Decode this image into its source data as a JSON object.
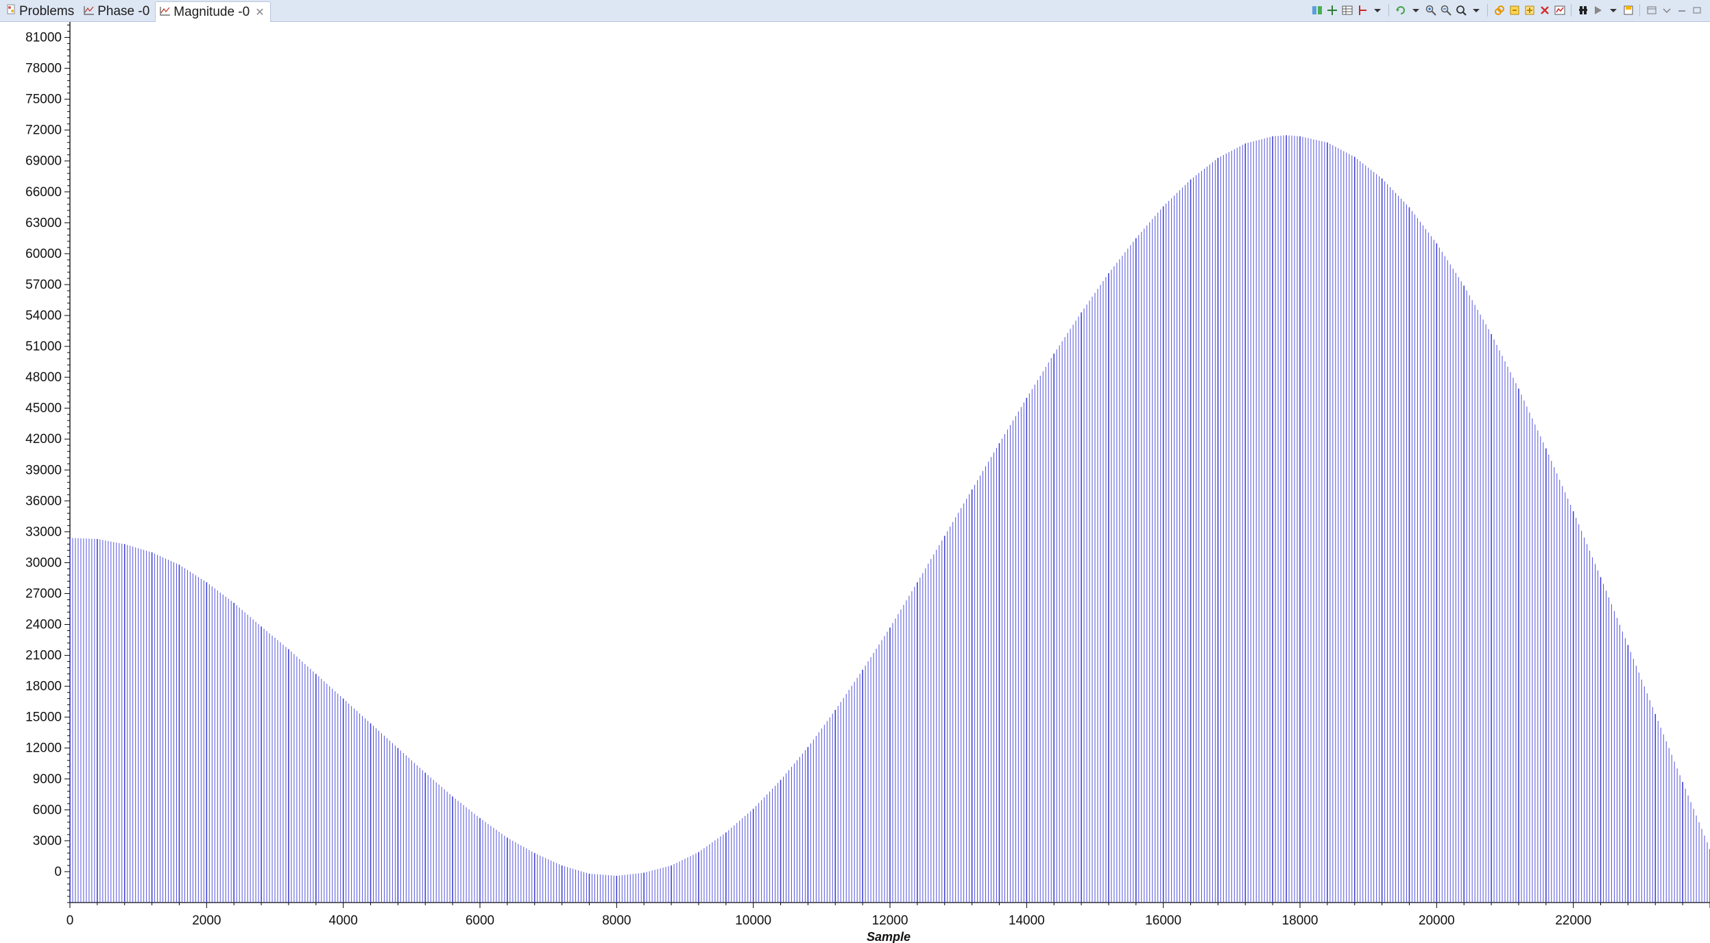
{
  "tabs": [
    {
      "label": "Problems",
      "icon": "problems-icon",
      "active": false
    },
    {
      "label": "Phase -0",
      "icon": "graph-icon",
      "active": false
    },
    {
      "label": "Magnitude -0",
      "icon": "graph-icon",
      "active": true,
      "close_icon": "close-icon"
    }
  ],
  "toolbar": {
    "icons": [
      "columns-icon",
      "grid-icon",
      "table-icon",
      "cursor-icon",
      "dropdown-icon",
      "refresh-icon",
      "dropdown-icon",
      "zoom-in-icon",
      "zoom-out-icon",
      "zoom-reset-icon",
      "dropdown-icon",
      "link-icon",
      "export-icon",
      "import-icon",
      "delete-icon",
      "data-icon",
      "pin-icon",
      "play-icon",
      "dropdown-icon",
      "save-icon",
      "layout-icon"
    ],
    "window_controls": [
      "view-menu-icon",
      "minimize-icon",
      "maximize-icon"
    ]
  },
  "chart_data": {
    "type": "bar",
    "title": "",
    "xlabel": "Sample",
    "ylabel": "",
    "xlim": [
      0,
      24000
    ],
    "ylim": [
      -3000,
      82500
    ],
    "x_ticks": [
      "0",
      "2000",
      "4000",
      "6000",
      "8000",
      "10000",
      "12000",
      "14000",
      "16000",
      "18000",
      "20000",
      "22000"
    ],
    "y_ticks": [
      "0",
      "3000",
      "6000",
      "9000",
      "12000",
      "15000",
      "18000",
      "21000",
      "24000",
      "27000",
      "30000",
      "33000",
      "36000",
      "39000",
      "42000",
      "45000",
      "48000",
      "51000",
      "54000",
      "57000",
      "60000",
      "63000",
      "66000",
      "69000",
      "72000",
      "75000",
      "78000",
      "81000"
    ],
    "grid": false,
    "series": [
      {
        "color": "#3f3fd8",
        "x": [
          0,
          400,
          800,
          1200,
          1600,
          2000,
          2400,
          2800,
          3200,
          3600,
          4000,
          4400,
          4800,
          5200,
          5600,
          6000,
          6400,
          6800,
          7200,
          7600,
          8000,
          8400,
          8800,
          9200,
          9600,
          10000,
          10400,
          10800,
          11200,
          11600,
          12000,
          12400,
          12800,
          13200,
          13600,
          14000,
          14400,
          14800,
          15200,
          15600,
          16000,
          16400,
          16800,
          17200,
          17600,
          17800,
          18000,
          18400,
          18800,
          19200,
          19600,
          20000,
          20400,
          20800,
          21200,
          21600,
          22000,
          22400,
          22800,
          23200,
          23600,
          24000
        ],
        "values": [
          32400,
          32300,
          31800,
          31000,
          29800,
          28100,
          26100,
          23800,
          21600,
          19200,
          16800,
          14400,
          12000,
          9600,
          7300,
          5200,
          3300,
          1800,
          600,
          -200,
          -400,
          -100,
          600,
          1900,
          3800,
          6100,
          8900,
          12100,
          15700,
          19600,
          23700,
          28100,
          32600,
          37100,
          41600,
          46000,
          50300,
          54300,
          58100,
          61500,
          64600,
          67200,
          69300,
          70700,
          71400,
          71500,
          71400,
          70800,
          69400,
          67300,
          64500,
          61000,
          56900,
          52200,
          46900,
          41100,
          35000,
          28600,
          22000,
          15300,
          8700,
          2200
        ]
      }
    ]
  }
}
